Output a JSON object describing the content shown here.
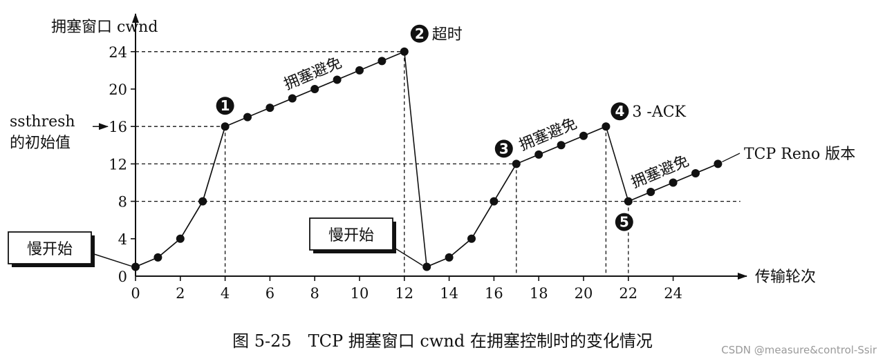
{
  "chart_data": {
    "type": "line",
    "ylabel": "拥塞窗口 cwnd",
    "xlabel": "传输轮次",
    "caption": "图 5-25　TCP 拥塞窗口 cwnd 在拥塞控制时的变化情况",
    "x_ticks": [
      0,
      2,
      4,
      6,
      8,
      10,
      12,
      14,
      16,
      18,
      20,
      22,
      24
    ],
    "y_ticks": [
      0,
      4,
      8,
      12,
      16,
      20,
      24
    ],
    "xlim": [
      0,
      25
    ],
    "ylim": [
      0,
      24
    ],
    "grid": false,
    "series": [
      {
        "x": [
          0,
          1,
          2,
          3,
          4,
          5,
          6,
          7,
          8,
          9,
          10,
          11,
          12
        ],
        "y": [
          1,
          2,
          4,
          8,
          16,
          17,
          18,
          19,
          20,
          21,
          22,
          23,
          24
        ]
      },
      {
        "x": [
          13,
          14,
          15,
          16,
          17,
          18,
          19,
          20,
          21
        ],
        "y": [
          1,
          2,
          4,
          8,
          12,
          13,
          14,
          15,
          16
        ]
      },
      {
        "x": [
          22,
          23,
          24,
          25,
          26
        ],
        "y": [
          8,
          9,
          10,
          11,
          12
        ]
      }
    ],
    "drops": [
      {
        "from": [
          12,
          24
        ],
        "to": [
          13,
          1
        ]
      },
      {
        "from": [
          21,
          16
        ],
        "to": [
          22,
          8
        ]
      }
    ],
    "h_guides": [
      {
        "y": 24,
        "x_from": 0,
        "x_to": 12
      },
      {
        "y": 16,
        "x_from": 0,
        "x_to": 4
      },
      {
        "y": 12,
        "x_from": 0,
        "x_to": 17
      },
      {
        "y": 8,
        "x_from": 0,
        "x_to": 27
      }
    ],
    "v_guides": [
      4,
      12,
      17,
      21,
      22
    ],
    "ssthresh_label": [
      "ssthresh",
      "的初始值"
    ],
    "slow_start_label": "慢开始",
    "slow_start_targets": [
      [
        0,
        1
      ],
      [
        13,
        1
      ]
    ],
    "avoid_label": "拥塞避免",
    "avoid_segments": [
      [
        [
          5,
          17
        ],
        [
          11,
          23
        ]
      ],
      [
        [
          17,
          12
        ],
        [
          20,
          15
        ]
      ],
      [
        [
          22,
          8
        ],
        [
          25,
          11
        ]
      ]
    ],
    "markers": [
      {
        "num": "1",
        "x": 4,
        "y": 16,
        "text": ""
      },
      {
        "num": "2",
        "x": 12,
        "y": 24,
        "text": "超时"
      },
      {
        "num": "3",
        "x": 17,
        "y": 12,
        "text": ""
      },
      {
        "num": "4",
        "x": 21,
        "y": 16,
        "text": "3 -ACK"
      },
      {
        "num": "5",
        "x": 22,
        "y": 8,
        "text": ""
      }
    ],
    "reno_label": "TCP Reno 版本",
    "watermark": "CSDN @measure&control-Ssir"
  }
}
